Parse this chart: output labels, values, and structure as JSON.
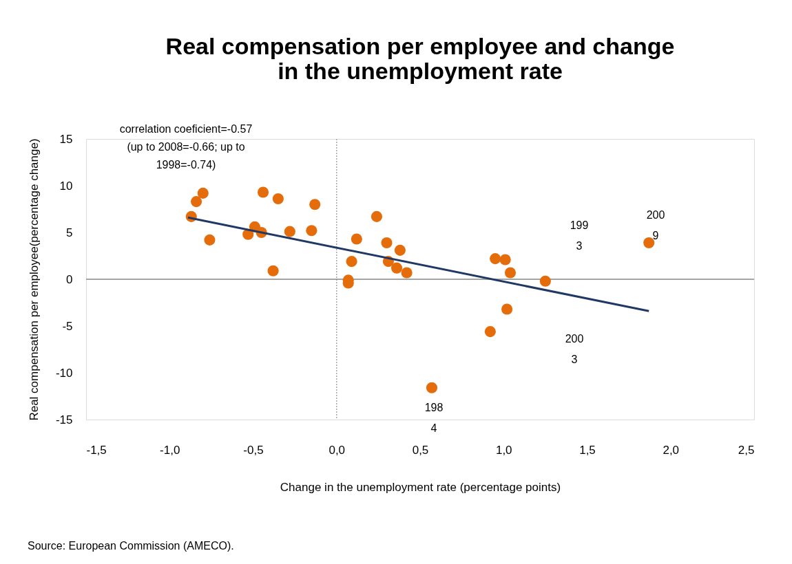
{
  "chart_data": {
    "type": "scatter",
    "title": "Real compensation per employee and change\nin the unemployment rate",
    "xlabel": "Change in the unemployment rate (percentage points)",
    "ylabel": "Real compensation per employee(percentage change)",
    "xlim": [
      -1.5,
      2.5
    ],
    "ylim": [
      -15,
      15
    ],
    "xticks": [
      {
        "value": -1.5,
        "label": "-1,5"
      },
      {
        "value": -1.0,
        "label": "-1,0"
      },
      {
        "value": -0.5,
        "label": "-0,5"
      },
      {
        "value": 0.0,
        "label": "0,0"
      },
      {
        "value": 0.5,
        "label": "0,5"
      },
      {
        "value": 1.0,
        "label": "1,0"
      },
      {
        "value": 1.5,
        "label": "1,5"
      },
      {
        "value": 2.0,
        "label": "2,0"
      },
      {
        "value": 2.5,
        "label": "2,5"
      }
    ],
    "yticks": [
      -15,
      -10,
      -5,
      0,
      5,
      10,
      15
    ],
    "grid": false,
    "series": [
      {
        "type": "scatter",
        "color": "#e46c0a",
        "marker": "circle",
        "x": [
          -0.87,
          -0.84,
          -0.8,
          -0.76,
          -0.53,
          -0.49,
          -0.45,
          -0.44,
          -0.38,
          -0.35,
          -0.28,
          -0.15,
          -0.13,
          0.07,
          0.07,
          0.09,
          0.12,
          0.24,
          0.3,
          0.31,
          0.36,
          0.38,
          0.42,
          0.57,
          0.92,
          0.95,
          1.01,
          1.02,
          1.04,
          1.25,
          1.87
        ],
        "values": [
          6.7,
          8.3,
          9.2,
          4.2,
          4.8,
          5.6,
          5.0,
          9.3,
          0.9,
          8.6,
          5.1,
          5.2,
          8.0,
          -0.1,
          -0.4,
          1.9,
          4.3,
          6.7,
          3.9,
          1.9,
          1.2,
          3.1,
          0.7,
          -11.6,
          -5.6,
          2.2,
          2.1,
          -3.2,
          0.7,
          -0.2,
          3.9
        ]
      },
      {
        "type": "line",
        "color": "#1f3864",
        "x": [
          -0.89,
          1.87
        ],
        "values": [
          6.6,
          -3.4
        ]
      }
    ],
    "ref_lines": [
      {
        "axis": "x",
        "value": 0,
        "color": "#a6a6a6",
        "line_style": "dotted"
      },
      {
        "axis": "y",
        "value": 0,
        "color": "#868686",
        "line_style": "solid"
      }
    ],
    "annotations": [
      "correlation coeficient=-0.57\n(up to 2008=-0.66; up to\n1998=-0.74)",
      "199\n3",
      "200\n9",
      "200\n3",
      "198\n4",
      "Source: European Commission (AMECO)."
    ]
  }
}
